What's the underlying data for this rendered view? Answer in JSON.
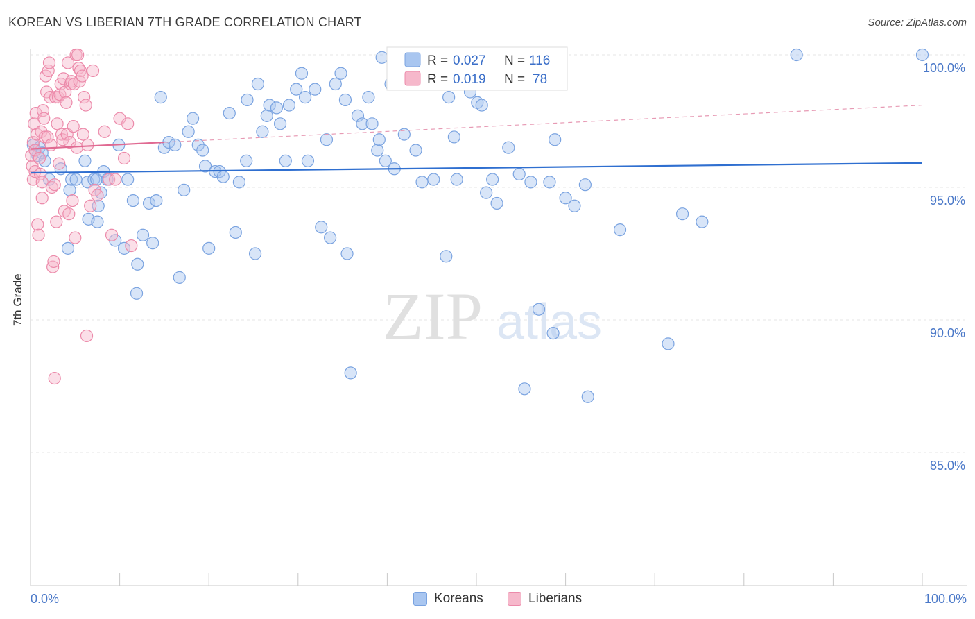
{
  "header": {
    "title": "KOREAN VS LIBERIAN 7TH GRADE CORRELATION CHART",
    "source": "Source: ZipAtlas.com"
  },
  "watermark": {
    "zip": "ZIP",
    "atlas": "atlas"
  },
  "legend_top": {
    "rows": [
      {
        "r_label": "R =",
        "r_value": "0.027",
        "n_label": "N =",
        "n_value": "116",
        "color": "#a9c6f0",
        "stroke": "#7aa3e0"
      },
      {
        "r_label": "R =",
        "r_value": "0.019",
        "n_label": "N =",
        "n_value": "78",
        "color": "#f6b8cb",
        "stroke": "#ec8aaa"
      }
    ]
  },
  "legend_bottom": {
    "items": [
      {
        "label": "Koreans",
        "color": "#a9c6f0",
        "stroke": "#7aa3e0"
      },
      {
        "label": "Liberians",
        "color": "#f6b8cb",
        "stroke": "#ec8aaa"
      }
    ]
  },
  "chart_data": {
    "type": "scatter",
    "title": "KOREAN VS LIBERIAN 7TH GRADE CORRELATION CHART",
    "xlabel": "",
    "ylabel": "7th Grade",
    "xlim": [
      0,
      100
    ],
    "ylim": [
      80.5,
      100.8
    ],
    "x_tick_labels": [
      "0.0%",
      "100.0%"
    ],
    "y_ticks": [
      100,
      95,
      90,
      85
    ],
    "y_tick_labels": [
      "100.0%",
      "95.0%",
      "90.0%",
      "85.0%"
    ],
    "grid": true,
    "legend_position": "top-center",
    "series": [
      {
        "name": "Koreans",
        "color": "#7aa3e0",
        "fill": "#a9c6f0",
        "trend": {
          "x": [
            0,
            100
          ],
          "y": [
            95.55,
            95.92
          ],
          "color": "#2f6fd0"
        },
        "points": [
          [
            0.3,
            96.6
          ],
          [
            0.5,
            96.4
          ],
          [
            0.8,
            96.2
          ],
          [
            1.0,
            96.5
          ],
          [
            1.3,
            96.3
          ],
          [
            1.6,
            96.0
          ],
          [
            2.1,
            95.3
          ],
          [
            3.4,
            95.7
          ],
          [
            4.2,
            92.7
          ],
          [
            4.4,
            94.9
          ],
          [
            4.6,
            95.3
          ],
          [
            5.1,
            95.3
          ],
          [
            6.1,
            96.0
          ],
          [
            6.4,
            95.2
          ],
          [
            6.5,
            93.8
          ],
          [
            7.1,
            95.3
          ],
          [
            7.4,
            95.3
          ],
          [
            7.5,
            93.7
          ],
          [
            7.6,
            94.3
          ],
          [
            7.9,
            94.8
          ],
          [
            8.2,
            95.6
          ],
          [
            8.6,
            95.3
          ],
          [
            9.5,
            93.0
          ],
          [
            9.9,
            96.6
          ],
          [
            10.5,
            92.7
          ],
          [
            10.9,
            95.3
          ],
          [
            11.5,
            94.5
          ],
          [
            11.9,
            91.0
          ],
          [
            12.0,
            92.1
          ],
          [
            12.6,
            93.2
          ],
          [
            13.3,
            94.4
          ],
          [
            13.7,
            92.9
          ],
          [
            14.1,
            94.5
          ],
          [
            14.6,
            98.4
          ],
          [
            15.0,
            96.5
          ],
          [
            15.5,
            96.7
          ],
          [
            16.2,
            96.6
          ],
          [
            16.7,
            91.6
          ],
          [
            17.2,
            94.9
          ],
          [
            17.7,
            97.1
          ],
          [
            18.2,
            97.6
          ],
          [
            18.8,
            96.6
          ],
          [
            19.3,
            96.4
          ],
          [
            19.6,
            95.8
          ],
          [
            20.0,
            92.7
          ],
          [
            20.7,
            95.6
          ],
          [
            21.2,
            95.6
          ],
          [
            21.6,
            95.4
          ],
          [
            22.3,
            97.8
          ],
          [
            23.0,
            93.3
          ],
          [
            23.4,
            95.2
          ],
          [
            24.2,
            96.0
          ],
          [
            24.3,
            98.3
          ],
          [
            25.2,
            92.5
          ],
          [
            25.5,
            98.9
          ],
          [
            26.0,
            97.1
          ],
          [
            26.5,
            97.7
          ],
          [
            26.8,
            98.1
          ],
          [
            27.6,
            98.0
          ],
          [
            28.0,
            97.4
          ],
          [
            28.6,
            96.0
          ],
          [
            29.0,
            98.1
          ],
          [
            29.8,
            98.7
          ],
          [
            30.4,
            99.3
          ],
          [
            30.8,
            98.4
          ],
          [
            31.1,
            96.0
          ],
          [
            31.9,
            98.7
          ],
          [
            32.6,
            93.5
          ],
          [
            33.2,
            96.8
          ],
          [
            33.6,
            93.1
          ],
          [
            34.2,
            98.9
          ],
          [
            34.8,
            99.3
          ],
          [
            35.3,
            98.3
          ],
          [
            35.5,
            92.5
          ],
          [
            35.9,
            88.0
          ],
          [
            36.7,
            97.7
          ],
          [
            37.2,
            97.4
          ],
          [
            37.9,
            98.4
          ],
          [
            38.3,
            97.4
          ],
          [
            38.9,
            96.4
          ],
          [
            39.1,
            96.8
          ],
          [
            39.4,
            99.9
          ],
          [
            39.8,
            96.0
          ],
          [
            40.4,
            98.9
          ],
          [
            40.8,
            95.7
          ],
          [
            41.2,
            99.9
          ],
          [
            41.9,
            97.0
          ],
          [
            43.2,
            96.4
          ],
          [
            43.9,
            95.2
          ],
          [
            45.2,
            95.3
          ],
          [
            46.6,
            92.4
          ],
          [
            46.9,
            98.4
          ],
          [
            47.5,
            96.9
          ],
          [
            47.8,
            95.3
          ],
          [
            48.6,
            99.9
          ],
          [
            49.3,
            98.6
          ],
          [
            50.1,
            98.2
          ],
          [
            50.6,
            98.1
          ],
          [
            51.1,
            94.8
          ],
          [
            51.8,
            95.3
          ],
          [
            52.3,
            94.4
          ],
          [
            53.6,
            96.5
          ],
          [
            54.6,
            100.0
          ],
          [
            54.8,
            95.5
          ],
          [
            55.4,
            87.4
          ],
          [
            56.1,
            95.2
          ],
          [
            57.0,
            90.4
          ],
          [
            58.2,
            95.2
          ],
          [
            58.6,
            89.5
          ],
          [
            58.8,
            96.8
          ],
          [
            60.0,
            94.6
          ],
          [
            61.0,
            94.3
          ],
          [
            62.2,
            95.1
          ],
          [
            62.5,
            87.1
          ],
          [
            66.1,
            93.4
          ],
          [
            71.5,
            89.1
          ],
          [
            73.1,
            94.0
          ],
          [
            75.3,
            93.7
          ],
          [
            85.9,
            100.0
          ],
          [
            100.0,
            100.0
          ]
        ]
      },
      {
        "name": "Liberians",
        "color": "#ec8aaa",
        "fill": "#f6b8cb",
        "trend": {
          "x": [
            0,
            15
          ],
          "y": [
            96.45,
            96.7
          ],
          "color": "#e06a92"
        },
        "trend_extension": {
          "x": [
            15,
            100
          ],
          "y": [
            96.7,
            98.1
          ],
          "color": "#e79ab4"
        },
        "points": [
          [
            0.1,
            96.2
          ],
          [
            0.2,
            95.8
          ],
          [
            0.3,
            95.3
          ],
          [
            0.3,
            96.7
          ],
          [
            0.4,
            97.4
          ],
          [
            0.5,
            96.4
          ],
          [
            0.5,
            95.6
          ],
          [
            0.6,
            97.8
          ],
          [
            0.7,
            97.0
          ],
          [
            0.8,
            93.6
          ],
          [
            0.9,
            93.2
          ],
          [
            1.0,
            96.1
          ],
          [
            1.1,
            95.5
          ],
          [
            1.2,
            97.1
          ],
          [
            1.3,
            95.2
          ],
          [
            1.3,
            94.6
          ],
          [
            1.4,
            97.9
          ],
          [
            1.5,
            97.6
          ],
          [
            1.6,
            96.9
          ],
          [
            1.7,
            99.2
          ],
          [
            1.8,
            98.6
          ],
          [
            1.9,
            96.9
          ],
          [
            2.0,
            99.4
          ],
          [
            2.1,
            99.7
          ],
          [
            2.2,
            98.4
          ],
          [
            2.3,
            96.6
          ],
          [
            2.4,
            95.0
          ],
          [
            2.5,
            92.0
          ],
          [
            2.6,
            92.2
          ],
          [
            2.7,
            87.8
          ],
          [
            2.7,
            95.1
          ],
          [
            2.8,
            98.4
          ],
          [
            2.9,
            93.7
          ],
          [
            3.0,
            97.4
          ],
          [
            3.1,
            98.4
          ],
          [
            3.2,
            95.9
          ],
          [
            3.3,
            98.5
          ],
          [
            3.4,
            98.9
          ],
          [
            3.5,
            97.0
          ],
          [
            3.6,
            96.8
          ],
          [
            3.7,
            99.1
          ],
          [
            3.8,
            94.1
          ],
          [
            3.9,
            98.6
          ],
          [
            4.0,
            98.2
          ],
          [
            4.1,
            97.0
          ],
          [
            4.2,
            99.7
          ],
          [
            4.3,
            94.0
          ],
          [
            4.4,
            96.7
          ],
          [
            4.5,
            98.9
          ],
          [
            4.6,
            99.0
          ],
          [
            4.7,
            94.5
          ],
          [
            4.8,
            97.3
          ],
          [
            4.9,
            98.9
          ],
          [
            5.0,
            93.1
          ],
          [
            5.1,
            100.0
          ],
          [
            5.2,
            96.5
          ],
          [
            5.3,
            100.0
          ],
          [
            5.4,
            99.5
          ],
          [
            5.5,
            99.0
          ],
          [
            5.6,
            99.4
          ],
          [
            5.8,
            99.2
          ],
          [
            5.9,
            97.0
          ],
          [
            6.0,
            98.4
          ],
          [
            6.2,
            98.1
          ],
          [
            6.3,
            89.4
          ],
          [
            6.4,
            96.6
          ],
          [
            6.7,
            94.3
          ],
          [
            7.0,
            99.4
          ],
          [
            7.2,
            94.9
          ],
          [
            7.5,
            94.7
          ],
          [
            8.3,
            97.1
          ],
          [
            8.8,
            95.3
          ],
          [
            9.1,
            93.2
          ],
          [
            9.5,
            95.3
          ],
          [
            10.0,
            97.6
          ],
          [
            10.5,
            96.1
          ],
          [
            10.9,
            97.4
          ],
          [
            11.3,
            92.8
          ]
        ]
      }
    ]
  }
}
